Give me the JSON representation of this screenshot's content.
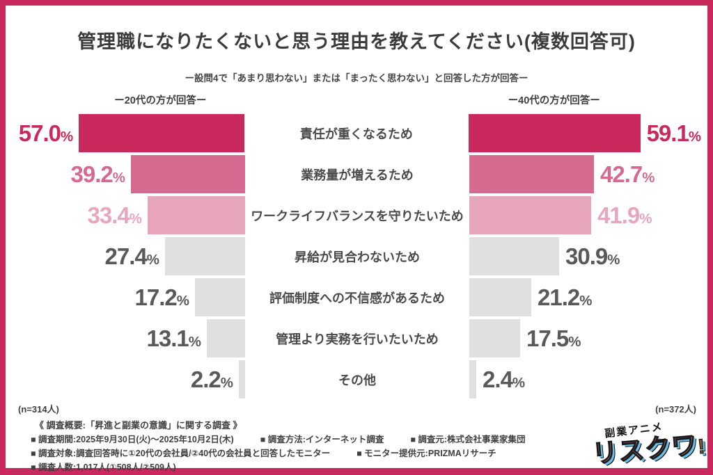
{
  "accent_color": "#c9295c",
  "title": "管理職になりたくないと思う理由を教えてください(複数回答可)",
  "subtitle": "ー設問4で「あまり思わない」または「まったく思わない」と回答した方が回答ー",
  "left_panel": {
    "header": "ー20代の方が回答ー",
    "n_label": "(n=314人)"
  },
  "right_panel": {
    "header": "ー40代の方が回答ー",
    "n_label": "(n=372人)"
  },
  "chart_data": {
    "type": "bar",
    "orientation": "horizontal_butterfly",
    "unit": "%",
    "categories": [
      "責任が重くなるため",
      "業務量が増えるため",
      "ワークライフバランスを守りたいため",
      "昇給が見合わないため",
      "評価制度への不信感があるため",
      "管理より実務を行いたいため",
      "その他"
    ],
    "series": [
      {
        "name": "20代の方が回答",
        "n": 314,
        "values": [
          57.0,
          39.2,
          33.4,
          27.4,
          17.2,
          13.1,
          2.2
        ]
      },
      {
        "name": "40代の方が回答",
        "n": 372,
        "values": [
          59.1,
          42.7,
          41.9,
          30.9,
          21.2,
          17.5,
          2.4
        ]
      }
    ],
    "xlim": [
      0,
      60
    ],
    "grid": false,
    "row_bar_colors": [
      "#c9295c",
      "#d66990",
      "#e8a6bd",
      "#e0e0e0",
      "#e0e0e0",
      "#e0e0e0",
      "#e0e0e0"
    ],
    "value_label_colors": [
      "#c9295c",
      "#d66990",
      "#e8a6bd",
      "#595959",
      "#595959",
      "#595959",
      "#595959"
    ]
  },
  "footer": {
    "heading": "《 調査概要:「昇進と副業の意識」に関する調査 》",
    "rows": [
      [
        "■ 調査期間:2025年9月30日(火)〜2025年10月2日(木)",
        "■ 調査方法:インターネット調査",
        "■ 調査元:株式会社事業家集団"
      ],
      [
        "■ 調査対象:調査回答時に①20代の会社員/②40代の会社員と回答したモニター",
        "■ モニター提供元:PRIZMAリサーチ"
      ],
      [
        "■ 調査人数:1,017人(①508人/②509人)"
      ]
    ]
  },
  "logo": {
    "top": "副業アニメ",
    "main": "リスクワ",
    "exclaim": "!"
  }
}
